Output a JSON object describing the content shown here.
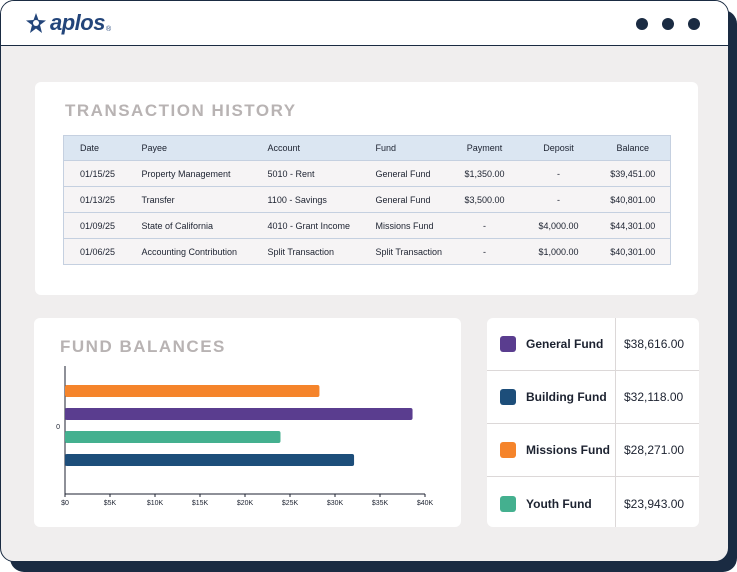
{
  "app": {
    "logo_text": "aplos",
    "logo_reg": "®"
  },
  "transactions": {
    "title": "TRANSACTION HISTORY",
    "columns": [
      "Date",
      "Payee",
      "Account",
      "Fund",
      "Payment",
      "Deposit",
      "Balance"
    ],
    "rows": [
      [
        "01/15/25",
        "Property Management",
        "5010 - Rent",
        "General Fund",
        "$1,350.00",
        "-",
        "$39,451.00"
      ],
      [
        "01/13/25",
        "Transfer",
        "1100 - Savings",
        "General Fund",
        "$3,500.00",
        "-",
        "$40,801.00"
      ],
      [
        "01/09/25",
        "State of California",
        "4010 - Grant Income",
        "Missions Fund",
        "-",
        "$4,000.00",
        "$44,301.00"
      ],
      [
        "01/06/25",
        "Accounting Contribution",
        "Split Transaction",
        "Split Transaction",
        "-",
        "$1,000.00",
        "$40,301.00"
      ]
    ]
  },
  "fund_balances": {
    "title": "FUND BALANCES",
    "legend": [
      {
        "name": "General Fund",
        "value": "$38,616.00",
        "color": "#5a3d8f"
      },
      {
        "name": "Building Fund",
        "value": "$32,118.00",
        "color": "#1d4e7a"
      },
      {
        "name": "Missions Fund",
        "value": "$28,271.00",
        "color": "#f5842b"
      },
      {
        "name": "Youth Fund",
        "value": "$23,943.00",
        "color": "#44b08f"
      }
    ]
  },
  "chart_data": {
    "type": "bar",
    "orientation": "horizontal",
    "title": "FUND BALANCES",
    "category_label": "0",
    "series": [
      {
        "name": "Missions Fund",
        "value": 28271,
        "color": "#f5842b"
      },
      {
        "name": "General Fund",
        "value": 38616,
        "color": "#5a3d8f"
      },
      {
        "name": "Youth Fund",
        "value": 23943,
        "color": "#44b08f"
      },
      {
        "name": "Building Fund",
        "value": 32118,
        "color": "#1d4e7a"
      }
    ],
    "xticks": [
      "$0",
      "$5K",
      "$10K",
      "$15K",
      "$20K",
      "$25K",
      "$30K",
      "$35K",
      "$40K"
    ],
    "xlim": [
      0,
      40000
    ]
  }
}
